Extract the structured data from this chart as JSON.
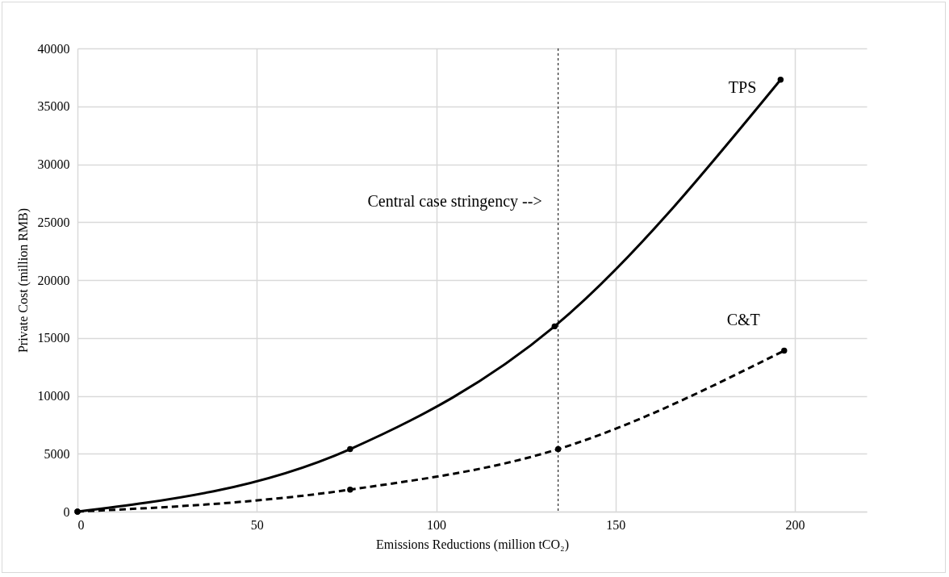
{
  "chart_data": {
    "type": "line",
    "xlabel": "Emissions Reductions (million tCO₂)",
    "ylabel": "Private Cost (million RMB)",
    "xlim": [
      0,
      220
    ],
    "xticks": [
      0,
      50,
      100,
      150,
      200
    ],
    "ylim": [
      0,
      40000
    ],
    "yticks": [
      0,
      5000,
      10000,
      15000,
      20000,
      25000,
      30000,
      35000,
      40000
    ],
    "grid": true,
    "marker": "circle",
    "series": [
      {
        "name": "TPS",
        "color": "#000000",
        "line_style": "solid",
        "x": [
          0,
          76,
          133,
          196
        ],
        "values": [
          0,
          5400,
          16000,
          37300
        ]
      },
      {
        "name": "C&T",
        "color": "#000000",
        "line_style": "dashed",
        "x": [
          0,
          76,
          134,
          197
        ],
        "values": [
          0,
          1900,
          5400,
          13900
        ]
      }
    ],
    "ref_lines": [
      {
        "axis": "x",
        "value": 134,
        "label": "Central case stringency -->",
        "color": "#000000",
        "line_style": "dotted"
      }
    ]
  }
}
